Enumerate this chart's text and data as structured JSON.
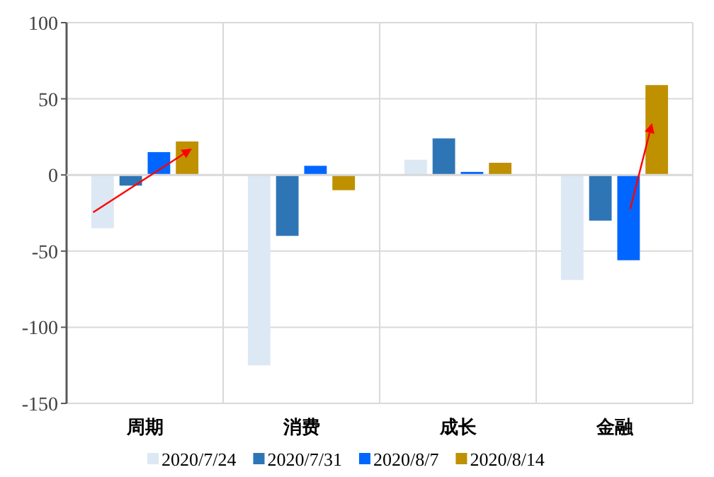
{
  "chart_data": {
    "type": "bar",
    "categories": [
      "周期",
      "消费",
      "成长",
      "金融"
    ],
    "series": [
      {
        "name": "2020/7/24",
        "color": "#dde8f5",
        "values": [
          -35,
          -125,
          10,
          -69
        ]
      },
      {
        "name": "2020/7/31",
        "color": "#2e75b6",
        "values": [
          -7,
          -40,
          24,
          -30
        ]
      },
      {
        "name": "2020/8/7",
        "color": "#0066ff",
        "values": [
          15,
          6,
          2,
          -56
        ]
      },
      {
        "name": "2020/8/14",
        "color": "#bf9000",
        "values": [
          22,
          -10,
          8,
          59
        ]
      }
    ],
    "ylim": [
      -150,
      100
    ],
    "yticks": [
      -150,
      -100,
      -50,
      0,
      50,
      100
    ],
    "grid": true,
    "legend": "bottom"
  }
}
